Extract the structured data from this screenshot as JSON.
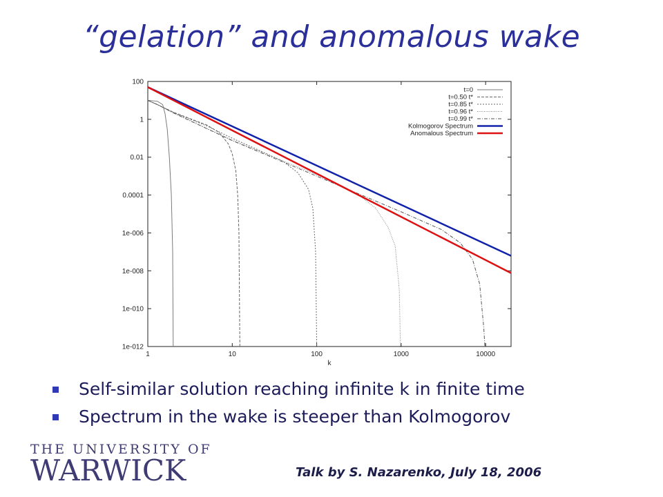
{
  "slide": {
    "title": "“gelation” and anomalous wake",
    "bullets": [
      "Self-similar solution reaching infinite k in finite time",
      "Spectrum in the wake is steeper than Kolmogorov"
    ],
    "logo": {
      "line1": "THE UNIVERSITY OF",
      "line2": "WARWICK"
    },
    "credit": "Talk by S. Nazarenko, July 18, 2006",
    "colors": {
      "title": "#2b2f9a",
      "bullet": "#2f38b5",
      "logo": "#3f3b73"
    }
  },
  "chart_data": {
    "type": "line",
    "xscale": "log",
    "yscale": "log",
    "xlabel": "k",
    "ylabel": "",
    "xlim": [
      1,
      20000
    ],
    "ylim": [
      1e-12,
      100
    ],
    "xticks": [
      "1",
      "10",
      "100",
      "1000",
      "10000"
    ],
    "yticks": [
      "100",
      "1",
      "0.01",
      "0.0001",
      "1e-006",
      "1e-008",
      "1e-010",
      "1e-012"
    ],
    "legend_position": "top-right",
    "grid": false,
    "series": [
      {
        "name": "t=0",
        "color": "#7a7a7a",
        "dash": "",
        "points": [
          [
            1,
            10
          ],
          [
            1.3,
            9
          ],
          [
            1.5,
            6
          ],
          [
            1.6,
            2
          ],
          [
            1.7,
            0.3
          ],
          [
            1.8,
            0.01
          ],
          [
            1.9,
            0.0001
          ],
          [
            1.97,
            1e-07
          ],
          [
            2,
            1e-12
          ]
        ]
      },
      {
        "name": "t=0.50 t*",
        "color": "#666666",
        "dash": "4,2",
        "points": [
          [
            1,
            10
          ],
          [
            1.3,
            6
          ],
          [
            2,
            2.4
          ],
          [
            3,
            1.2
          ],
          [
            5,
            0.5
          ],
          [
            7,
            0.2
          ],
          [
            9,
            0.05
          ],
          [
            10,
            0.015
          ],
          [
            11,
            0.002
          ],
          [
            11.6,
            0.0001
          ],
          [
            12,
            1e-06
          ],
          [
            12.3,
            1e-12
          ]
        ]
      },
      {
        "name": "t=0.85 t*",
        "color": "#666666",
        "dash": "2,2",
        "points": [
          [
            1,
            10
          ],
          [
            1.3,
            6
          ],
          [
            2,
            2.3
          ],
          [
            5,
            0.45
          ],
          [
            10,
            0.1
          ],
          [
            20,
            0.025
          ],
          [
            40,
            0.006
          ],
          [
            60,
            0.0015
          ],
          [
            80,
            0.0002
          ],
          [
            90,
            2e-05
          ],
          [
            97,
            1e-07
          ],
          [
            100,
            1e-12
          ]
        ]
      },
      {
        "name": "t=0.96 t*",
        "color": "#888888",
        "dash": "1,1.5",
        "points": [
          [
            1,
            10
          ],
          [
            1.3,
            6
          ],
          [
            2,
            2.2
          ],
          [
            10,
            0.08
          ],
          [
            100,
            0.0012
          ],
          [
            300,
            0.00012
          ],
          [
            500,
            2e-05
          ],
          [
            700,
            2e-06
          ],
          [
            850,
            2e-07
          ],
          [
            950,
            1e-09
          ],
          [
            980,
            1e-12
          ]
        ]
      },
      {
        "name": "t=0.99 t*",
        "color": "#555555",
        "dash": "5,2,1,2",
        "points": [
          [
            1,
            10
          ],
          [
            1.3,
            6
          ],
          [
            2,
            2.2
          ],
          [
            10,
            0.075
          ],
          [
            100,
            0.001
          ],
          [
            1000,
            1.3e-05
          ],
          [
            3000,
            1.5e-06
          ],
          [
            5000,
            3e-07
          ],
          [
            7000,
            4e-08
          ],
          [
            8500,
            2e-09
          ],
          [
            9500,
            1e-11
          ],
          [
            9800,
            1e-12
          ]
        ]
      },
      {
        "name": "Kolmogorov Spectrum",
        "color": "#1122aa",
        "dash": "",
        "width": 2.5,
        "points": [
          [
            1,
            50
          ],
          [
            20000,
            6.17e-08
          ]
        ]
      },
      {
        "name": "Anomalous Spectrum",
        "color": "#dd1111",
        "dash": "",
        "width": 2.5,
        "points": [
          [
            1,
            50
          ],
          [
            20000,
            7.57e-09
          ]
        ]
      }
    ]
  }
}
